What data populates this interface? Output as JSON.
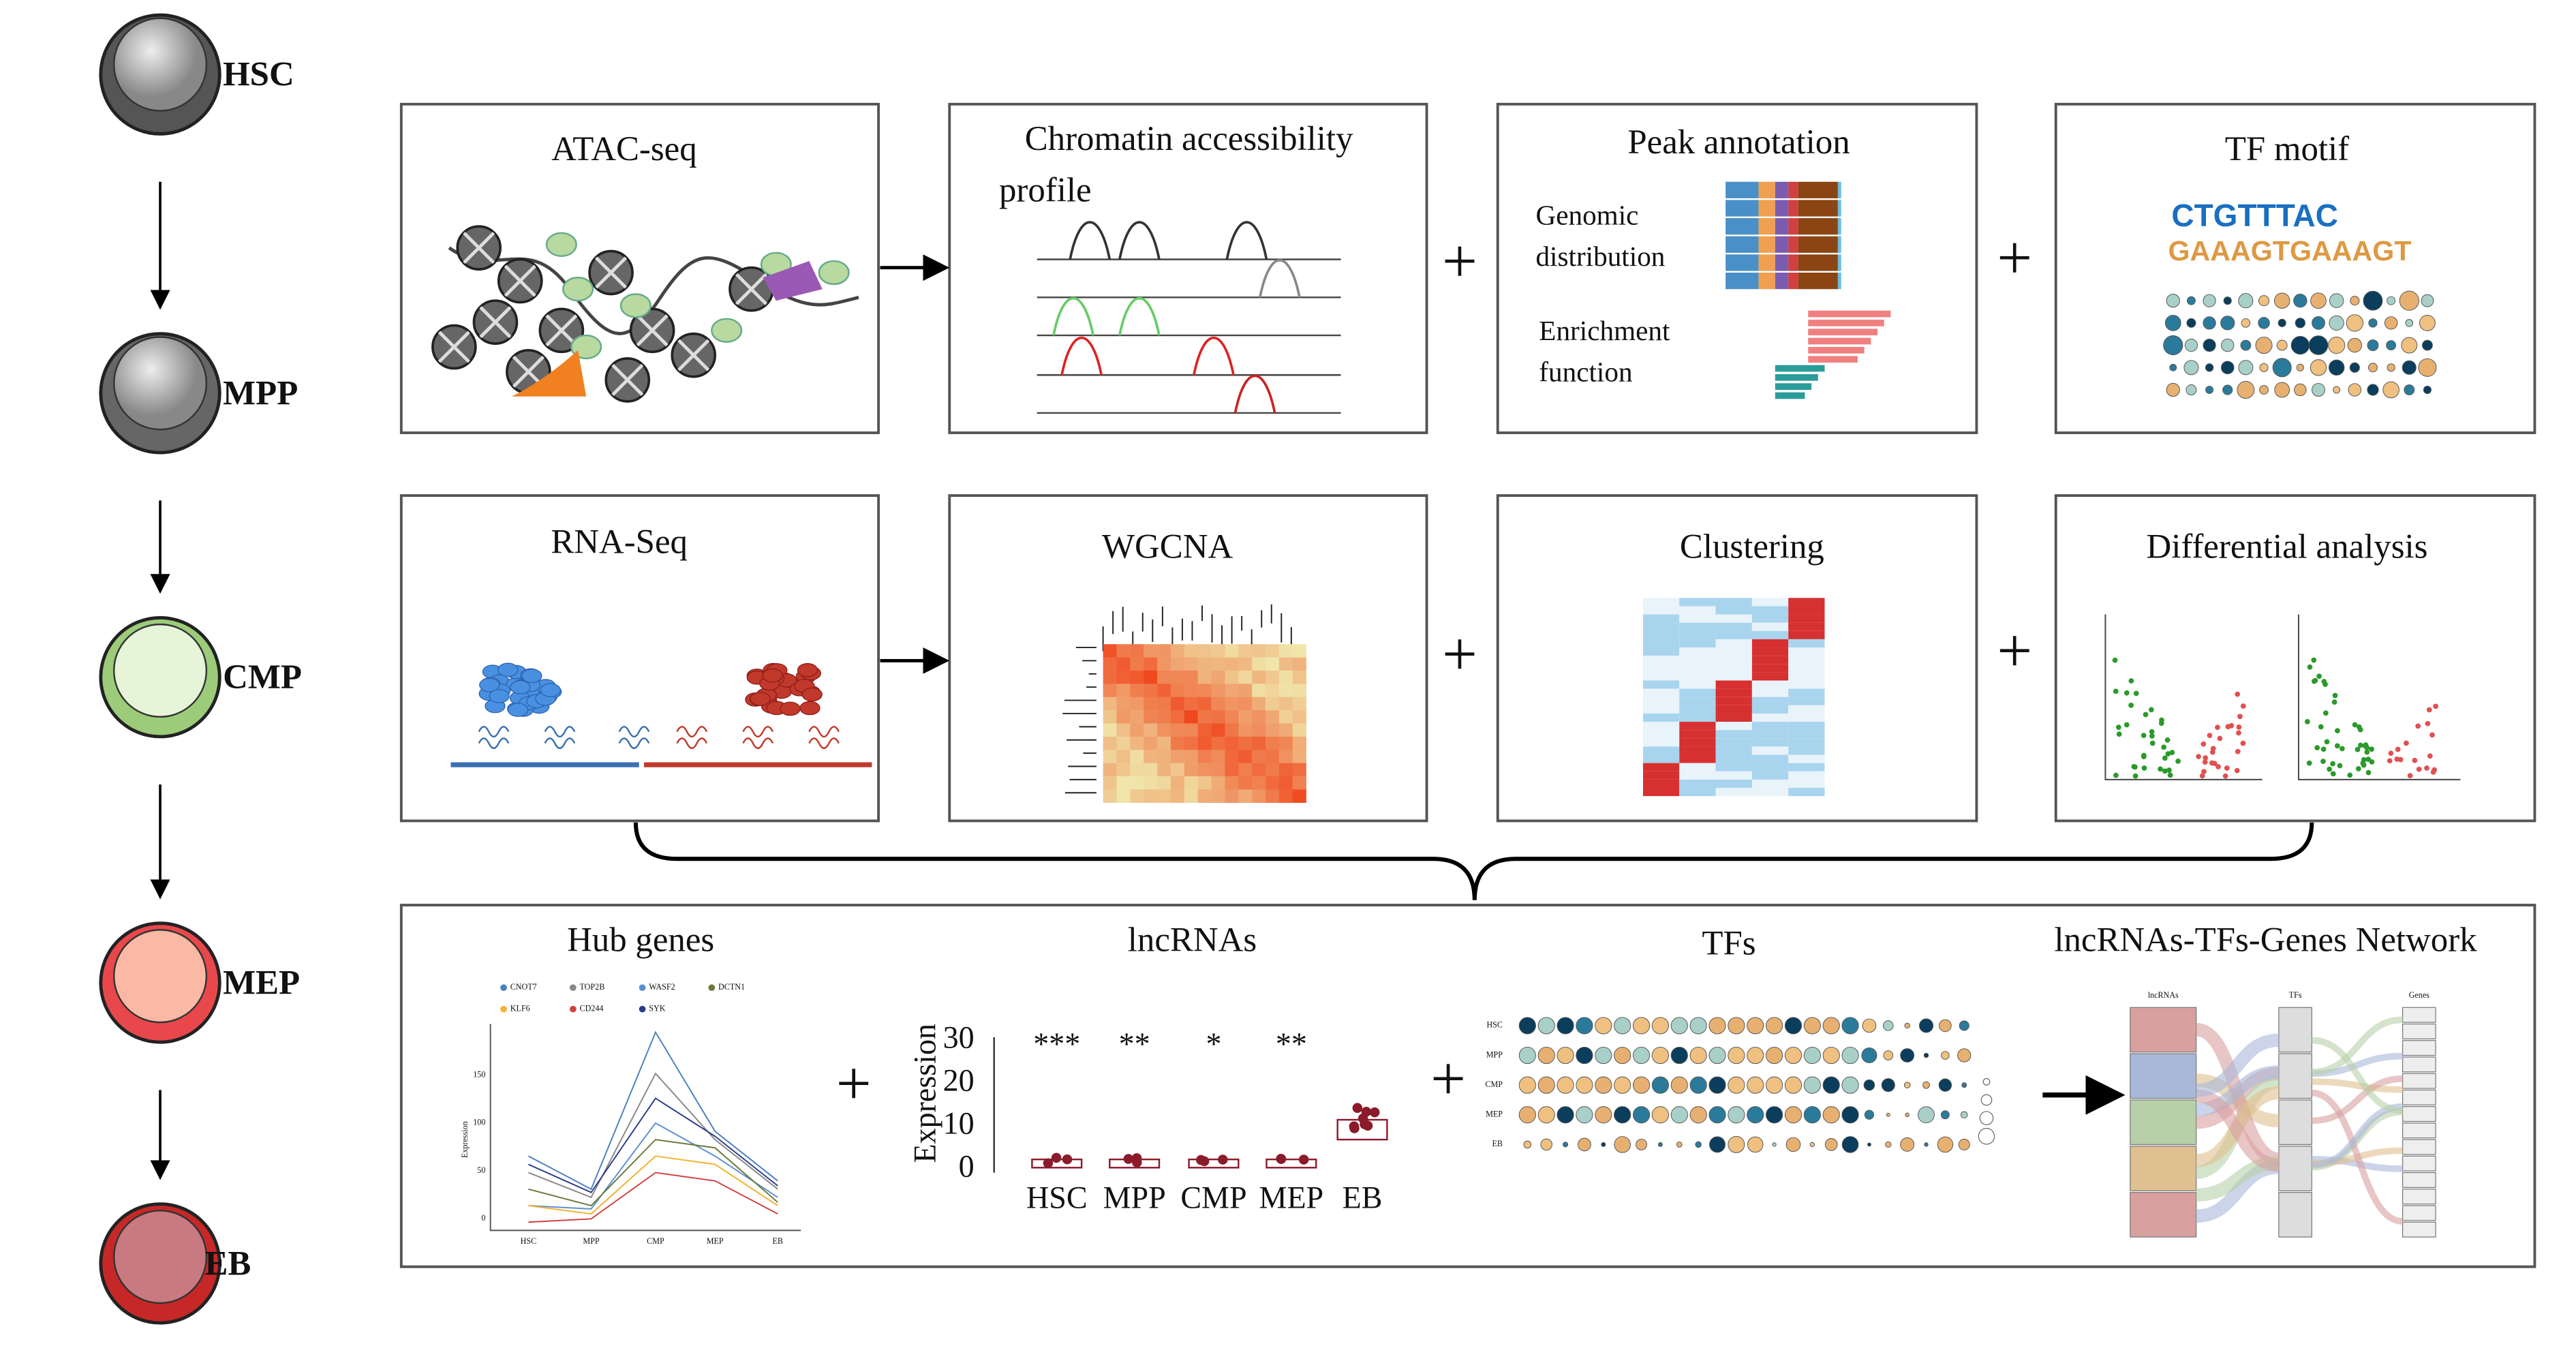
{
  "cells": [
    {
      "label": "HSC"
    },
    {
      "label": "MPP"
    },
    {
      "label": "CMP"
    },
    {
      "label": "MEP"
    },
    {
      "label": "EB"
    }
  ],
  "operators": {
    "plus": "+"
  },
  "atac": {
    "title": "ATAC-seq"
  },
  "chromatin": {
    "title_lines": [
      "Chromatin accessibility",
      "profile"
    ]
  },
  "peak": {
    "title": "Peak annotation",
    "labels": [
      [
        "Genomic",
        "distribution"
      ],
      [
        "Enrichment",
        "function"
      ]
    ]
  },
  "tf_motif": {
    "title": "TF motif",
    "motif": [
      "CTGTTTAC",
      "GAAAGTGAAAGT"
    ]
  },
  "rna_seq": {
    "title": "RNA-Seq"
  },
  "wgcna": {
    "title": "WGCNA"
  },
  "clustering": {
    "title": "Clustering"
  },
  "differential": {
    "title": "Differential analysis"
  },
  "hub_genes": {
    "title": "Hub genes",
    "legend": [
      "CNOT7",
      "TOP2B",
      "WASF2",
      "DCTN1",
      "KLF6",
      "CD244",
      "SYK"
    ],
    "x_labels": [
      "HSC",
      "MPP",
      "CMP",
      "MEP",
      "EB"
    ],
    "y_label": "Expression",
    "y_ticks": [
      "150",
      "100",
      "50",
      "0"
    ]
  },
  "lncrnas": {
    "title": "lncRNAs",
    "y_label": "Expression",
    "y_ticks": [
      "30",
      "20",
      "10",
      "0"
    ],
    "categories": [
      "HSC",
      "MPP",
      "CMP",
      "MEP",
      "EB"
    ],
    "significance": [
      "***",
      "**",
      "*",
      "**"
    ]
  },
  "tfs": {
    "title": "TFs",
    "rows": [
      "HSC",
      "MPP",
      "CMP",
      "MEP",
      "EB"
    ]
  },
  "network": {
    "title": "lncRNAs-TFs-Genes Network",
    "columns": [
      "lncRNAs",
      "TFs",
      "Genes"
    ]
  }
}
